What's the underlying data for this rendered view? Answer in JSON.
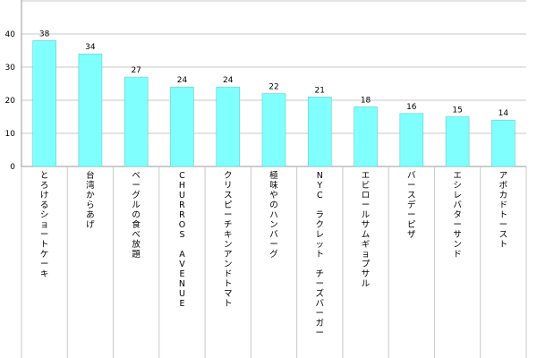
{
  "chart_data": {
    "type": "bar",
    "categories": [
      "とろけるショートケーキ",
      "台湾からあげ",
      "ベーグルの食べ放題",
      "CHURROS AVENUE",
      "クリスピーチキンアンドトマト",
      "極味やのハンバーグ",
      "NYC ラクレット チーズバーガー",
      "エビロールサムギョプサル",
      "バースデーピザ",
      "エシレバターサンド",
      "アボカドトースト"
    ],
    "values": [
      38,
      34,
      27,
      24,
      24,
      22,
      21,
      18,
      16,
      15,
      14
    ],
    "yticks": [
      0,
      10,
      20,
      30,
      40
    ],
    "ylim": [
      0,
      50
    ],
    "grid": true,
    "bar_color": "#80ffff",
    "bar_edge_color": "#66cccc",
    "grid_color": "#c8c8c8",
    "title": "",
    "xlabel": "",
    "ylabel": ""
  }
}
